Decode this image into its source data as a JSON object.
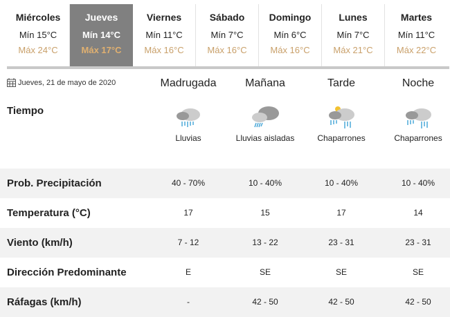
{
  "days": [
    {
      "name": "Miércoles",
      "min": "Mín 15°C",
      "max": "Máx 24°C"
    },
    {
      "name": "Jueves",
      "min": "Mín 14°C",
      "max": "Máx 17°C",
      "selected": true
    },
    {
      "name": "Viernes",
      "min": "Mín 11°C",
      "max": "Máx 16°C"
    },
    {
      "name": "Sábado",
      "min": "Mín 7°C",
      "max": "Máx 16°C"
    },
    {
      "name": "Domingo",
      "min": "Mín 6°C",
      "max": "Máx 16°C"
    },
    {
      "name": "Lunes",
      "min": "Mín 7°C",
      "max": "Máx 21°C"
    },
    {
      "name": "Martes",
      "min": "Mín 11°C",
      "max": "Máx 22°C"
    }
  ],
  "date": "Jueves, 21 de mayo de 2020",
  "periods": [
    "Madrugada",
    "Mañana",
    "Tarde",
    "Noche"
  ],
  "weather": {
    "label": "Tiempo",
    "items": [
      {
        "text": "Lluvias",
        "icon": "rain-cloud-icon"
      },
      {
        "text": "Lluvias aisladas",
        "icon": "isolated-rain-cloud-icon"
      },
      {
        "text": "Chaparrones",
        "icon": "sun-cloud-showers-icon"
      },
      {
        "text": "Chaparrones",
        "icon": "cloud-showers-icon"
      }
    ]
  },
  "rows": [
    {
      "label": "Prob. Precipitación",
      "values": [
        "40 - 70%",
        "10 - 40%",
        "10 - 40%",
        "10 - 40%"
      ]
    },
    {
      "label": "Temperatura (°C)",
      "values": [
        "17",
        "15",
        "17",
        "14"
      ]
    },
    {
      "label": "Viento (km/h)",
      "values": [
        "7 - 12",
        "13 - 22",
        "23 - 31",
        "23 - 31"
      ]
    },
    {
      "label": "Dirección Predominante",
      "values": [
        "E",
        "SE",
        "SE",
        "SE"
      ]
    },
    {
      "label": "Ráfagas (km/h)",
      "values": [
        "-",
        "42 - 50",
        "42 - 50",
        "42 - 50"
      ]
    }
  ],
  "colors": {
    "selected_tab": "#808080",
    "max_temp": "#c9a06a",
    "stripe": "#f2f2f2",
    "rain": "#4aa8d8"
  }
}
